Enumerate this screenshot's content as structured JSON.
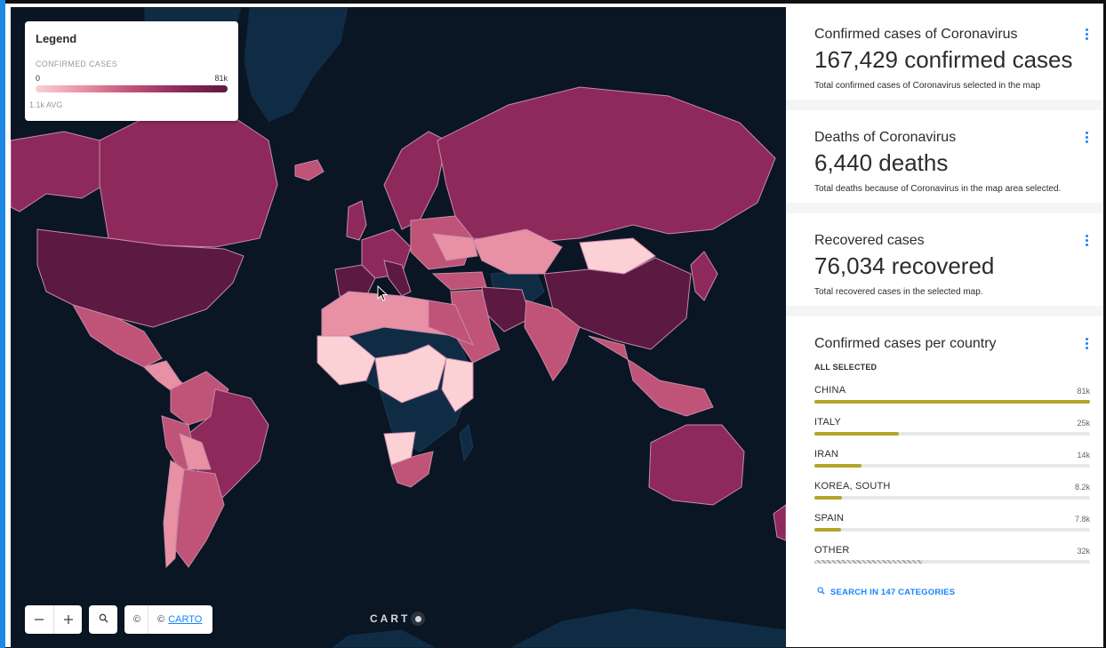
{
  "colors": {
    "accent": "#1785fb",
    "bar_fill": "#b2a52a",
    "map_ocean": "#0a1624",
    "map_no_data": "#0f2c44",
    "choropleth": [
      "#fbd1d6",
      "#e890a4",
      "#c05378",
      "#8d2a5b",
      "#5c1941"
    ]
  },
  "legend": {
    "title": "Legend",
    "subtitle": "CONFIRMED CASES",
    "min": "0",
    "max": "81k",
    "avg": "1.1k AVG"
  },
  "map_controls": {
    "zoom_out_icon": "minus-icon",
    "zoom_in_icon": "plus-icon",
    "search_icon": "search-icon",
    "attribution_symbol": "©",
    "attribution_prefix": "©",
    "attribution_link": "CARTO",
    "logo_text": "CART"
  },
  "widgets": {
    "confirmed": {
      "title": "Confirmed cases of Coronavirus",
      "value": "167,429 confirmed cases",
      "note": "Total confirmed cases of Coronavirus selected in the map"
    },
    "deaths": {
      "title": "Deaths of Coronavirus",
      "value": "6,440 deaths",
      "note": "Total deaths because of Coronavirus in the map area selected."
    },
    "recovered": {
      "title": "Recovered cases",
      "value": "76,034 recovered",
      "note": "Total recovered cases in the selected map."
    },
    "per_country": {
      "title": "Confirmed cases per country",
      "selection": "ALL SELECTED",
      "categories": [
        {
          "name": "CHINA",
          "value": "81k",
          "fraction": 1.0
        },
        {
          "name": "ITALY",
          "value": "25k",
          "fraction": 0.307
        },
        {
          "name": "IRAN",
          "value": "14k",
          "fraction": 0.172
        },
        {
          "name": "KOREA, SOUTH",
          "value": "8.2k",
          "fraction": 0.101
        },
        {
          "name": "SPAIN",
          "value": "7.8k",
          "fraction": 0.096
        },
        {
          "name": "OTHER",
          "value": "32k",
          "fraction": 0.395
        }
      ],
      "search_label": "SEARCH IN 147 CATEGORIES"
    }
  }
}
